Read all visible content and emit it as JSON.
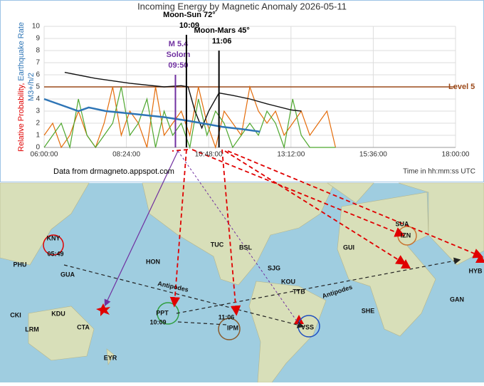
{
  "chart_data": {
    "type": "line",
    "title": "Incoming Energy by Magnetic Anomaly 2026-05-11",
    "y_label": [
      "Relative Probability,",
      "Earthquake Rate",
      "M3+/h/2"
    ],
    "source": "Data from drmagneto.appspot.com",
    "x_label": "Time in hh:mm:ss UTC",
    "xlim": [
      6,
      18
    ],
    "xticks": [
      {
        "value": 6,
        "label": "06:00:00"
      },
      {
        "value": 8.4,
        "label": "08:24:00"
      },
      {
        "value": 10.8,
        "label": "10:48:00"
      },
      {
        "value": 13.2,
        "label": "13:12:00"
      },
      {
        "value": 15.6,
        "label": "15:36:00"
      },
      {
        "value": 18,
        "label": "18:00:00"
      }
    ],
    "ylim": [
      0,
      10
    ],
    "yticks": [
      0,
      1,
      2,
      3,
      4,
      5,
      6,
      7,
      8,
      9,
      10
    ],
    "grid": true,
    "level": {
      "value": 5,
      "label": "Level 5",
      "color": "#9c4a1a"
    },
    "series": [
      {
        "color": "#e46c0a",
        "width": 1.2,
        "x": [
          6,
          6.25,
          6.5,
          6.75,
          7,
          7.25,
          7.5,
          7.75,
          8,
          8.25,
          8.5,
          8.75,
          9,
          9.25,
          9.5,
          9.75,
          10,
          10.25,
          10.5,
          10.75,
          11,
          11.25,
          11.5,
          11.75,
          12,
          12.25,
          12.5,
          12.75,
          13,
          13.25,
          13.5,
          13.75,
          14,
          14.25,
          14.5
        ],
        "values": [
          1,
          2,
          0,
          1,
          3,
          1,
          0,
          2,
          5,
          1,
          3,
          2,
          0,
          5,
          1,
          2,
          3,
          1,
          5,
          2,
          0,
          3,
          2,
          1,
          5,
          3,
          2,
          3,
          1,
          2,
          3,
          1,
          2,
          3,
          0
        ]
      },
      {
        "color": "#4ea72e",
        "width": 1.2,
        "x": [
          6,
          6.25,
          6.5,
          6.75,
          7,
          7.25,
          7.5,
          7.75,
          8,
          8.25,
          8.5,
          8.75,
          9,
          9.25,
          9.5,
          9.75,
          10,
          10.25,
          10.5,
          10.75,
          11,
          11.25,
          11.5,
          11.75,
          12,
          12.25,
          12.5,
          12.75,
          13,
          13.25,
          13.5,
          13.75,
          14,
          14.25,
          14.5
        ],
        "values": [
          0,
          1,
          2,
          0,
          4,
          1,
          0,
          1,
          2,
          5,
          1,
          2,
          4,
          0,
          3,
          1,
          2,
          0,
          4,
          1,
          3,
          2,
          0,
          1,
          2,
          1,
          3,
          2,
          0,
          4,
          1,
          0,
          0,
          0,
          0
        ]
      },
      {
        "color": "#111111",
        "width": 1.4,
        "x": [
          6.6,
          7.5,
          8.5,
          9.5,
          10,
          10.2,
          10.4,
          10.6,
          10.8,
          11.1,
          11.5,
          12,
          12.5,
          13.2,
          13.5
        ],
        "values": [
          6.2,
          5.7,
          5.3,
          5,
          5.1,
          5,
          3,
          1.6,
          3,
          4.5,
          4.3,
          4,
          3.6,
          3.1,
          3
        ]
      },
      {
        "color": "#2e75b6",
        "width": 2.5,
        "x": [
          6,
          6.5,
          7,
          7.3,
          7.8,
          8.5,
          9.5,
          10.2,
          10.6,
          11.2,
          11.8,
          12.3
        ],
        "values": [
          4,
          3.5,
          3,
          3.3,
          3,
          2.8,
          2.5,
          2.2,
          2,
          1.7,
          1.5,
          1.3
        ]
      }
    ],
    "markers": [
      {
        "x": 9.83,
        "value": 6,
        "color": "#7030a0",
        "labels": [
          "M 5.4",
          "Solom",
          "09:50"
        ]
      },
      {
        "x": 10.15,
        "value": 9.3,
        "color": "#000000",
        "labels": [
          "Moon-Sun 72°",
          "10:09"
        ]
      },
      {
        "x": 11.1,
        "value": 8,
        "color": "#000000",
        "labels": [
          "Moon-Mars 45°",
          "11:06"
        ]
      }
    ]
  },
  "map": {
    "labels": [
      "KNY",
      "05:49",
      "PHU",
      "GUA",
      "HON",
      "TUC",
      "BSL",
      "SJG",
      "KOU",
      "TTB",
      "GUI",
      "SUA",
      "IZN",
      "HYB",
      "CKI",
      "KDU",
      "LRM",
      "CTA",
      "EYR",
      "PPT",
      "10:09",
      "IPM",
      "11:06",
      "VSS",
      "SHE",
      "GAN",
      "Antipodes",
      "Antipodes"
    ]
  }
}
